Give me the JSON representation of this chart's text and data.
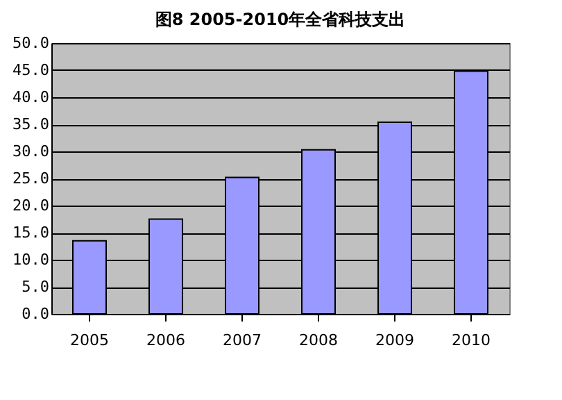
{
  "chart_data": {
    "type": "bar",
    "title": "图8  2005-2010年全省科技支出",
    "categories": [
      "2005",
      "2006",
      "2007",
      "2008",
      "2009",
      "2010"
    ],
    "values": [
      13.5,
      17.5,
      25.2,
      30.3,
      35.4,
      44.8
    ],
    "color": "#9999ff",
    "ylim": [
      0,
      50
    ],
    "yticks": [
      {
        "value": 0,
        "label": "0.0"
      },
      {
        "value": 5,
        "label": "5.0"
      },
      {
        "value": 10,
        "label": "10.0"
      },
      {
        "value": 15,
        "label": "15.0"
      },
      {
        "value": 20,
        "label": "20.0"
      },
      {
        "value": 25,
        "label": "25.0"
      },
      {
        "value": 30,
        "label": "30.0"
      },
      {
        "value": 35,
        "label": "35.0"
      },
      {
        "value": 40,
        "label": "40.0"
      },
      {
        "value": 45,
        "label": "45.0"
      },
      {
        "value": 50,
        "label": "50.0"
      }
    ],
    "grid": "y"
  }
}
